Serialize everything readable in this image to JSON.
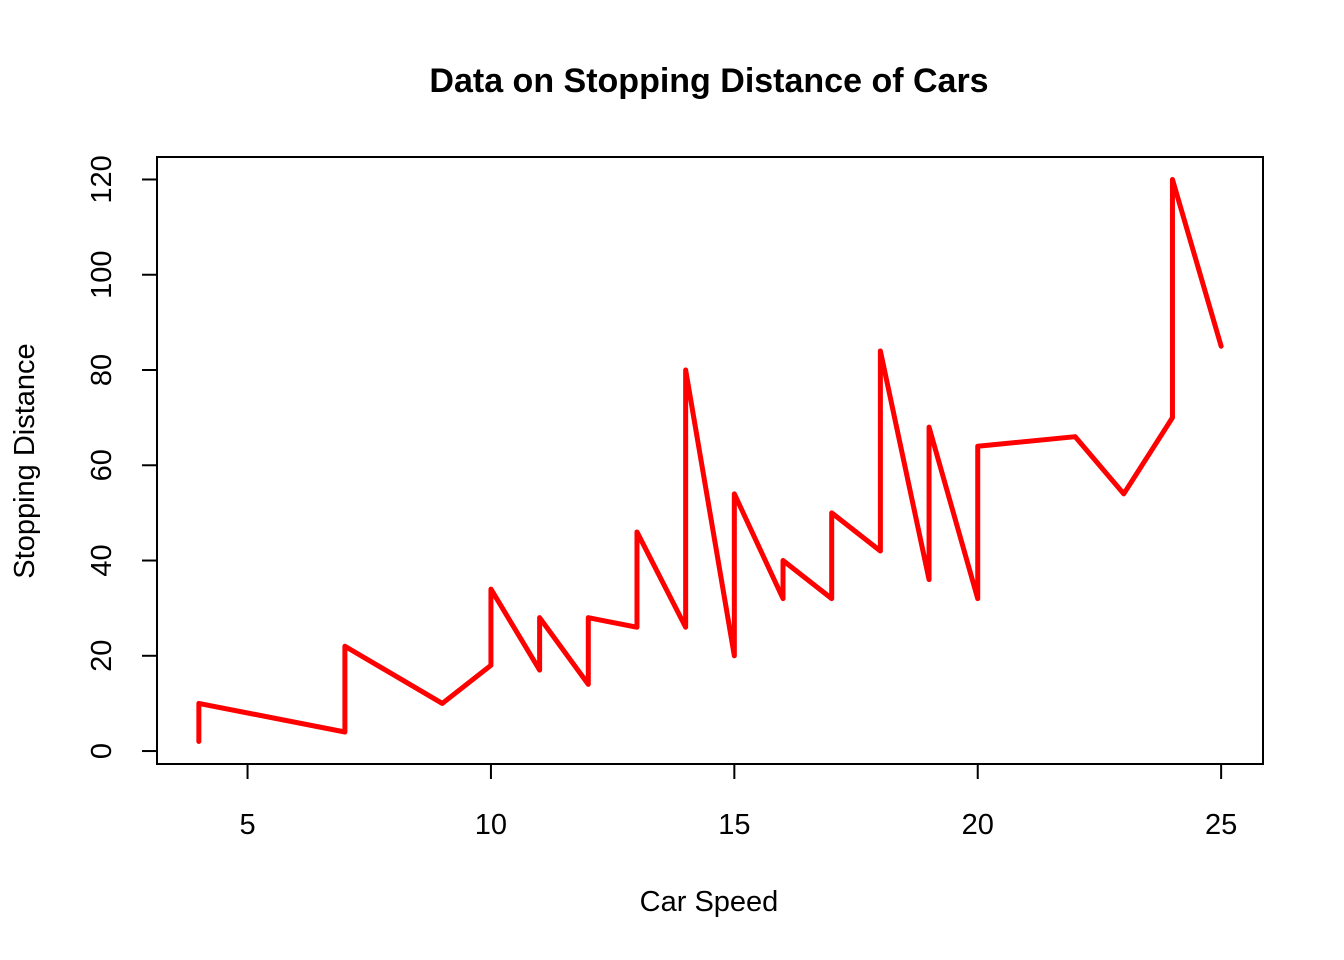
{
  "chart_data": {
    "type": "line",
    "title": "Data on Stopping Distance of Cars",
    "xlabel": "Car Speed",
    "ylabel": "Stopping Distance",
    "xlim": [
      3.14,
      25.86
    ],
    "ylim": [
      -2.72,
      124.72
    ],
    "x_ticks": [
      5,
      10,
      15,
      20,
      25
    ],
    "y_ticks": [
      0,
      20,
      40,
      60,
      80,
      100,
      120
    ],
    "grid": false,
    "line_color": "#ff0000",
    "series": [
      {
        "x": [
          4,
          4,
          7,
          7,
          8,
          9,
          10,
          10,
          10,
          11,
          11,
          12,
          12,
          12,
          12,
          13,
          13,
          13,
          13,
          14,
          14,
          14,
          14,
          15,
          15,
          15,
          16,
          16,
          17,
          17,
          17,
          18,
          18,
          18,
          18,
          19,
          19,
          19,
          20,
          20,
          20,
          20,
          20,
          22,
          23,
          24,
          24,
          24,
          24,
          25
        ],
        "y": [
          2,
          10,
          4,
          22,
          16,
          10,
          18,
          26,
          34,
          17,
          28,
          14,
          20,
          24,
          28,
          26,
          34,
          34,
          46,
          26,
          36,
          60,
          80,
          20,
          26,
          54,
          32,
          40,
          32,
          40,
          50,
          42,
          56,
          76,
          84,
          36,
          46,
          68,
          32,
          48,
          52,
          56,
          64,
          66,
          54,
          70,
          92,
          93,
          120,
          85
        ]
      }
    ]
  }
}
